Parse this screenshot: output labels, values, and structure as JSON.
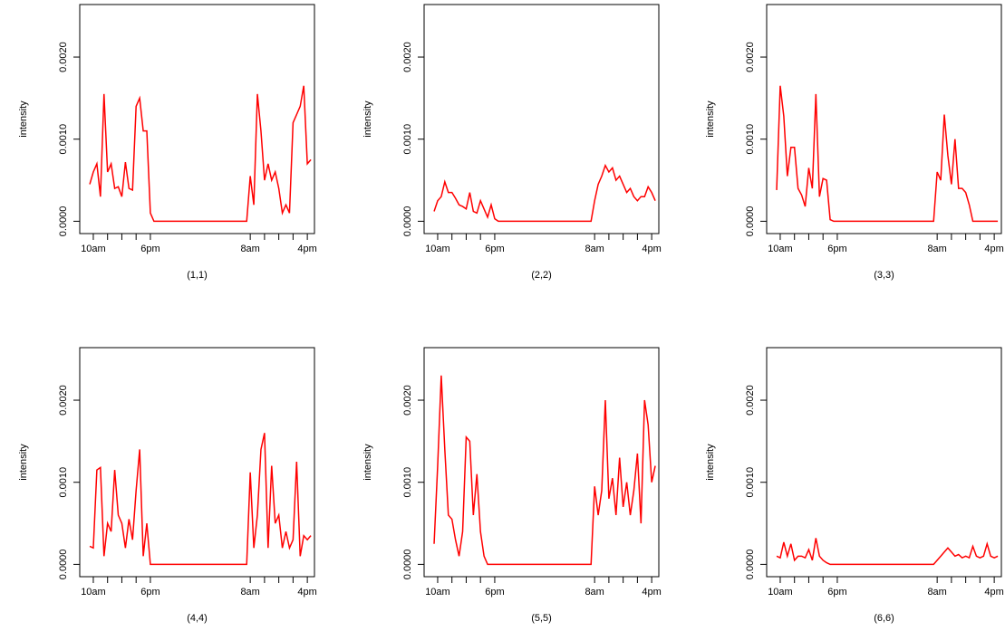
{
  "chart_data": [
    {
      "type": "line",
      "xlabel": "(1,1)",
      "ylabel": "intensity",
      "color": "#ff0000",
      "xlim": [
        8.1,
        41
      ],
      "ylim": [
        -0.00015,
        0.00264
      ],
      "xticks": [
        {
          "value": 10,
          "label": "10am"
        },
        {
          "value": 18,
          "label": "6pm"
        },
        {
          "value": 32,
          "label": "8am"
        },
        {
          "value": 40,
          "label": "4pm"
        }
      ],
      "xminor_ticks": [
        12,
        14,
        16,
        34,
        36,
        38
      ],
      "yticks": [
        {
          "value": 0,
          "label": "0.0000"
        },
        {
          "value": 0.001,
          "label": "0.0010"
        },
        {
          "value": 0.002,
          "label": "0.0020"
        }
      ],
      "x": [
        9.5,
        10,
        10.5,
        11,
        11.5,
        12,
        12.5,
        13,
        13.5,
        14,
        14.5,
        15,
        15.5,
        16,
        16.5,
        17,
        17.5,
        18,
        18.5,
        31.5,
        32,
        32.5,
        33,
        33.5,
        34,
        34.5,
        35,
        35.5,
        36,
        36.5,
        37,
        37.5,
        38,
        38.5,
        39,
        39.5,
        40,
        40.5
      ],
      "values": [
        0.00045,
        0.0006,
        0.0007,
        0.0003,
        0.00155,
        0.0006,
        0.0007,
        0.0004,
        0.00042,
        0.0003,
        0.00072,
        0.0004,
        0.00038,
        0.0014,
        0.0015,
        0.0011,
        0.0011,
        0.0001,
        0,
        0,
        0.00055,
        0.0002,
        0.00155,
        0.0011,
        0.0005,
        0.0007,
        0.0005,
        0.0006,
        0.0004,
        0.0001,
        0.0002,
        0.0001,
        0.0012,
        0.0013,
        0.0014,
        0.00165,
        0.0007,
        0.00075
      ]
    },
    {
      "type": "line",
      "xlabel": "(2,2)",
      "ylabel": "intensity",
      "color": "#ff0000",
      "xlim": [
        8.1,
        41
      ],
      "ylim": [
        -0.00015,
        0.00264
      ],
      "xticks": [
        {
          "value": 10,
          "label": "10am"
        },
        {
          "value": 18,
          "label": "6pm"
        },
        {
          "value": 32,
          "label": "8am"
        },
        {
          "value": 40,
          "label": "4pm"
        }
      ],
      "xminor_ticks": [
        12,
        14,
        16,
        34,
        36,
        38
      ],
      "yticks": [
        {
          "value": 0,
          "label": "0.0000"
        },
        {
          "value": 0.001,
          "label": "0.0010"
        },
        {
          "value": 0.002,
          "label": "0.0020"
        }
      ],
      "x": [
        9.5,
        10,
        10.5,
        11,
        11.5,
        12,
        12.5,
        13,
        13.5,
        14,
        14.5,
        15,
        15.5,
        16,
        16.5,
        17,
        17.5,
        18,
        18.5,
        31.5,
        32,
        32.5,
        33,
        33.5,
        34,
        34.5,
        35,
        35.5,
        36,
        36.5,
        37,
        37.5,
        38,
        38.5,
        39,
        39.5,
        40,
        40.5
      ],
      "values": [
        0.00012,
        0.00025,
        0.0003,
        0.00048,
        0.00035,
        0.00035,
        0.00028,
        0.0002,
        0.00018,
        0.00015,
        0.00035,
        0.00012,
        0.0001,
        0.00025,
        0.00015,
        5e-05,
        0.0002,
        3e-05,
        0,
        0,
        0.00025,
        0.00045,
        0.00055,
        0.00068,
        0.0006,
        0.00065,
        0.0005,
        0.00055,
        0.00045,
        0.00035,
        0.0004,
        0.0003,
        0.00025,
        0.0003,
        0.0003,
        0.00042,
        0.00035,
        0.00025
      ]
    },
    {
      "type": "line",
      "xlabel": "(3,3)",
      "ylabel": "intensity",
      "color": "#ff0000",
      "xlim": [
        8.1,
        41
      ],
      "ylim": [
        -0.00015,
        0.00264
      ],
      "xticks": [
        {
          "value": 10,
          "label": "10am"
        },
        {
          "value": 18,
          "label": "6pm"
        },
        {
          "value": 32,
          "label": "8am"
        },
        {
          "value": 40,
          "label": "4pm"
        }
      ],
      "xminor_ticks": [
        12,
        14,
        16,
        34,
        36,
        38
      ],
      "yticks": [
        {
          "value": 0,
          "label": "0.0000"
        },
        {
          "value": 0.001,
          "label": "0.0010"
        },
        {
          "value": 0.002,
          "label": "0.0020"
        }
      ],
      "x": [
        9.5,
        10,
        10.5,
        11,
        11.5,
        12,
        12.5,
        13,
        13.5,
        14,
        14.5,
        15,
        15.5,
        16,
        16.5,
        17,
        17.5,
        18,
        18.5,
        31.5,
        32,
        32.5,
        33,
        33.5,
        34,
        34.5,
        35,
        35.5,
        36,
        36.5,
        37,
        37.5,
        38,
        38.5,
        39,
        39.5,
        40,
        40.5
      ],
      "values": [
        0.00038,
        0.00165,
        0.00128,
        0.00055,
        0.0009,
        0.0009,
        0.0004,
        0.00032,
        0.00018,
        0.00065,
        0.0004,
        0.00155,
        0.0003,
        0.00052,
        0.0005,
        2e-05,
        0,
        0,
        0,
        0,
        0.0006,
        0.0005,
        0.0013,
        0.0008,
        0.00045,
        0.001,
        0.0004,
        0.0004,
        0.00035,
        0.0002,
        0,
        0,
        0,
        0,
        0,
        0,
        0,
        0
      ]
    },
    {
      "type": "line",
      "xlabel": "(4,4)",
      "ylabel": "intensity",
      "color": "#ff0000",
      "xlim": [
        8.1,
        41
      ],
      "ylim": [
        -0.00015,
        0.00264
      ],
      "xticks": [
        {
          "value": 10,
          "label": "10am"
        },
        {
          "value": 18,
          "label": "6pm"
        },
        {
          "value": 32,
          "label": "8am"
        },
        {
          "value": 40,
          "label": "4pm"
        }
      ],
      "xminor_ticks": [
        12,
        14,
        16,
        34,
        36,
        38
      ],
      "yticks": [
        {
          "value": 0,
          "label": "0.0000"
        },
        {
          "value": 0.001,
          "label": "0.0010"
        },
        {
          "value": 0.002,
          "label": "0.0020"
        }
      ],
      "x": [
        9.5,
        10,
        10.5,
        11,
        11.5,
        12,
        12.5,
        13,
        13.5,
        14,
        14.5,
        15,
        15.5,
        16,
        16.5,
        17,
        17.5,
        18,
        18.5,
        31.5,
        32,
        32.5,
        33,
        33.5,
        34,
        34.5,
        35,
        35.5,
        36,
        36.5,
        37,
        37.5,
        38,
        38.5,
        39,
        39.5,
        40,
        40.5
      ],
      "values": [
        0.00022,
        0.0002,
        0.00115,
        0.00118,
        0.0001,
        0.0005,
        0.0004,
        0.00115,
        0.0006,
        0.0005,
        0.0002,
        0.00055,
        0.0003,
        0.0009,
        0.0014,
        0.0001,
        0.0005,
        0,
        0,
        0,
        0.00112,
        0.0002,
        0.0006,
        0.0014,
        0.0016,
        0.0002,
        0.0012,
        0.0005,
        0.0006,
        0.0002,
        0.0004,
        0.0002,
        0.0003,
        0.00125,
        0.0001,
        0.00035,
        0.0003,
        0.00035
      ]
    },
    {
      "type": "line",
      "xlabel": "(5,5)",
      "ylabel": "intensity",
      "color": "#ff0000",
      "xlim": [
        8.1,
        41
      ],
      "ylim": [
        -0.00015,
        0.00264
      ],
      "xticks": [
        {
          "value": 10,
          "label": "10am"
        },
        {
          "value": 18,
          "label": "6pm"
        },
        {
          "value": 32,
          "label": "8am"
        },
        {
          "value": 40,
          "label": "4pm"
        }
      ],
      "xminor_ticks": [
        12,
        14,
        16,
        34,
        36,
        38
      ],
      "yticks": [
        {
          "value": 0,
          "label": "0.0000"
        },
        {
          "value": 0.001,
          "label": "0.0010"
        },
        {
          "value": 0.002,
          "label": "0.0020"
        }
      ],
      "x": [
        9.5,
        10,
        10.5,
        11,
        11.5,
        12,
        12.5,
        13,
        13.5,
        14,
        14.5,
        15,
        15.5,
        16,
        16.5,
        17,
        17.5,
        18,
        18.5,
        31.5,
        32,
        32.5,
        33,
        33.5,
        34,
        34.5,
        35,
        35.5,
        36,
        36.5,
        37,
        37.5,
        38,
        38.5,
        39,
        39.5,
        40,
        40.5
      ],
      "values": [
        0.00025,
        0.0012,
        0.0023,
        0.0014,
        0.0006,
        0.00055,
        0.0003,
        0.0001,
        0.0004,
        0.00155,
        0.0015,
        0.0006,
        0.0011,
        0.0004,
        0.0001,
        0,
        0,
        0,
        0,
        0,
        0.00095,
        0.0006,
        0.0009,
        0.002,
        0.0008,
        0.00105,
        0.0006,
        0.0013,
        0.0007,
        0.001,
        0.0006,
        0.0009,
        0.00135,
        0.0005,
        0.002,
        0.0017,
        0.001,
        0.0012
      ]
    },
    {
      "type": "line",
      "xlabel": "(6,6)",
      "ylabel": "intensity",
      "color": "#ff0000",
      "xlim": [
        8.1,
        41
      ],
      "ylim": [
        -0.00015,
        0.00264
      ],
      "xticks": [
        {
          "value": 10,
          "label": "10am"
        },
        {
          "value": 18,
          "label": "6pm"
        },
        {
          "value": 32,
          "label": "8am"
        },
        {
          "value": 40,
          "label": "4pm"
        }
      ],
      "xminor_ticks": [
        12,
        14,
        16,
        34,
        36,
        38
      ],
      "yticks": [
        {
          "value": 0,
          "label": "0.0000"
        },
        {
          "value": 0.001,
          "label": "0.0010"
        },
        {
          "value": 0.002,
          "label": "0.0020"
        }
      ],
      "x": [
        9.5,
        10,
        10.5,
        11,
        11.5,
        12,
        12.5,
        13,
        13.5,
        14,
        14.5,
        15,
        15.5,
        16,
        16.5,
        17,
        17.5,
        18,
        18.5,
        31.5,
        32,
        32.5,
        33,
        33.5,
        34,
        34.5,
        35,
        35.5,
        36,
        36.5,
        37,
        37.5,
        38,
        38.5,
        39,
        39.5,
        40,
        40.5
      ],
      "values": [
        0.0001,
        8e-05,
        0.00027,
        0.0001,
        0.00025,
        5e-05,
        0.0001,
        0.0001,
        8e-05,
        0.00018,
        5e-05,
        0.00032,
        0.0001,
        5e-05,
        2e-05,
        0,
        0,
        0,
        0,
        0,
        5e-05,
        0.0001,
        0.00015,
        0.0002,
        0.00015,
        0.0001,
        0.00012,
        8e-05,
        0.0001,
        8e-05,
        0.00022,
        0.0001,
        8e-05,
        0.0001,
        0.00025,
        0.0001,
        8e-05,
        0.0001
      ]
    }
  ]
}
